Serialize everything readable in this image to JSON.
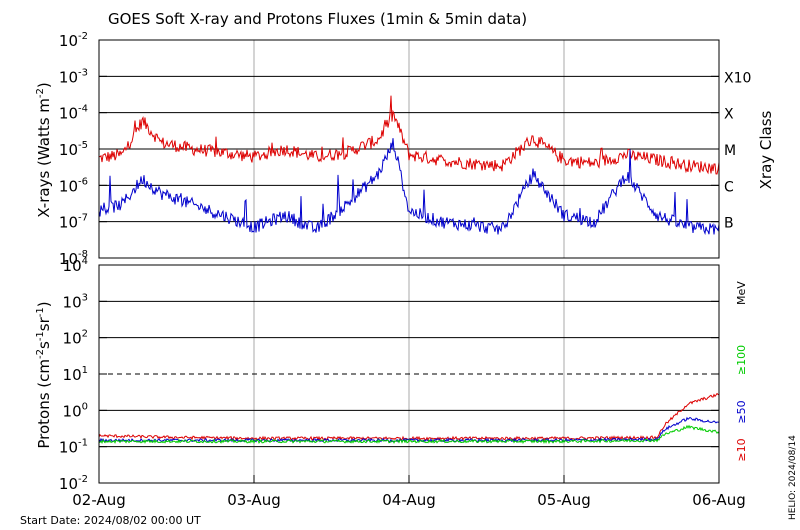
{
  "title": "GOES Soft X-ray and Protons Fluxes   (1min & 5min data)",
  "start_date": "Start Date: 2024/08/02 00:00 UT",
  "stamp": "HELIO: 2024/08/14",
  "colors": {
    "red": "#dd0000",
    "blue": "#0000cc",
    "green": "#00cc00",
    "grid": "#000000",
    "vgrid": "#aaaaaa"
  },
  "chart_data": [
    {
      "type": "line",
      "scale": "log",
      "ylabel_base": "X-rays (Watts m",
      "ylabel_exp": "-2",
      "ylabel_tail": ")",
      "ylim": [
        1e-08,
        0.01
      ],
      "y_ticks": [
        {
          "base": "10",
          "exp": "-2"
        },
        {
          "base": "10",
          "exp": "-3"
        },
        {
          "base": "10",
          "exp": "-4"
        },
        {
          "base": "10",
          "exp": "-5"
        },
        {
          "base": "10",
          "exp": "-6"
        },
        {
          "base": "10",
          "exp": "-7"
        },
        {
          "base": "10",
          "exp": "-8"
        }
      ],
      "right_title": "Xray Class",
      "classes": [
        "X10",
        "X",
        "M",
        "C",
        "B"
      ],
      "xlim_days": [
        "02-Aug",
        "06-Aug"
      ],
      "series": [
        {
          "color_key": "red",
          "points": [
            [
              0,
              5.5e-06
            ],
            [
              0.15,
              7e-06
            ],
            [
              0.28,
              6e-05
            ],
            [
              0.4,
              1.5e-05
            ],
            [
              0.6,
              1e-05
            ],
            [
              0.8,
              8e-06
            ],
            [
              1.0,
              6e-06
            ],
            [
              1.2,
              1e-05
            ],
            [
              1.4,
              6e-06
            ],
            [
              1.6,
              8e-06
            ],
            [
              1.8,
              1.8e-05
            ],
            [
              1.9,
              9e-05
            ],
            [
              2.0,
              7e-06
            ],
            [
              2.2,
              5e-06
            ],
            [
              2.4,
              4e-06
            ],
            [
              2.6,
              3.5e-06
            ],
            [
              2.8,
              2e-05
            ],
            [
              3.0,
              5e-06
            ],
            [
              3.2,
              4e-06
            ],
            [
              3.4,
              7e-06
            ],
            [
              3.6,
              5e-06
            ],
            [
              3.8,
              3.5e-06
            ],
            [
              4.0,
              3e-06
            ]
          ]
        },
        {
          "color_key": "blue",
          "points": [
            [
              0,
              2e-07
            ],
            [
              0.15,
              3e-07
            ],
            [
              0.28,
              1.5e-06
            ],
            [
              0.4,
              6e-07
            ],
            [
              0.6,
              3e-07
            ],
            [
              0.8,
              1.5e-07
            ],
            [
              1.0,
              7e-08
            ],
            [
              1.2,
              1.5e-07
            ],
            [
              1.4,
              6e-08
            ],
            [
              1.6,
              3e-07
            ],
            [
              1.8,
              2e-06
            ],
            [
              1.9,
              1.5e-05
            ],
            [
              2.0,
              2e-07
            ],
            [
              2.2,
              1e-07
            ],
            [
              2.4,
              8e-08
            ],
            [
              2.6,
              6e-08
            ],
            [
              2.8,
              2e-06
            ],
            [
              3.0,
              1.5e-07
            ],
            [
              3.2,
              1e-07
            ],
            [
              3.4,
              2e-06
            ],
            [
              3.6,
              1.5e-07
            ],
            [
              3.8,
              7e-08
            ],
            [
              4.0,
              6e-08
            ]
          ]
        }
      ]
    },
    {
      "type": "line",
      "scale": "log",
      "ylabel_base": "Protons (cm",
      "ylabel_mid1": "-2",
      "ylabel_mid2": "s",
      "ylabel_mid3": "-1",
      "ylabel_mid4": "sr",
      "ylabel_mid5": "-1",
      "ylabel_tail": ")",
      "ylim": [
        0.01,
        10000
      ],
      "y_ticks": [
        {
          "base": "10",
          "exp": "4"
        },
        {
          "base": "10",
          "exp": "3"
        },
        {
          "base": "10",
          "exp": "2"
        },
        {
          "base": "10",
          "exp": "1"
        },
        {
          "base": "10",
          "exp": "0"
        },
        {
          "base": "10",
          "exp": "-1"
        },
        {
          "base": "10",
          "exp": "-2"
        }
      ],
      "threshold": 10,
      "unit": "MeV",
      "legend": [
        {
          "label": "≥100",
          "color_key": "green"
        },
        {
          "label": "≥50",
          "color_key": "blue"
        },
        {
          "label": "≥10",
          "color_key": "red"
        }
      ],
      "series": [
        {
          "label": "≥10",
          "color_key": "red",
          "points": [
            [
              0,
              0.2
            ],
            [
              0.5,
              0.18
            ],
            [
              1,
              0.17
            ],
            [
              2,
              0.17
            ],
            [
              3,
              0.17
            ],
            [
              3.6,
              0.18
            ],
            [
              3.65,
              0.4
            ],
            [
              3.8,
              1.5
            ],
            [
              4.0,
              2.8
            ]
          ]
        },
        {
          "label": "≥50",
          "color_key": "blue",
          "points": [
            [
              0,
              0.15
            ],
            [
              0.5,
              0.15
            ],
            [
              1,
              0.15
            ],
            [
              2,
              0.15
            ],
            [
              3,
              0.15
            ],
            [
              3.6,
              0.16
            ],
            [
              3.65,
              0.3
            ],
            [
              3.8,
              0.6
            ],
            [
              4.0,
              0.45
            ]
          ]
        },
        {
          "label": "≥100",
          "color_key": "green",
          "points": [
            [
              0,
              0.14
            ],
            [
              0.5,
              0.14
            ],
            [
              1,
              0.14
            ],
            [
              2,
              0.14
            ],
            [
              3,
              0.14
            ],
            [
              3.6,
              0.15
            ],
            [
              3.65,
              0.22
            ],
            [
              3.8,
              0.35
            ],
            [
              4.0,
              0.25
            ]
          ]
        }
      ],
      "x_ticks": [
        "02-Aug",
        "03-Aug",
        "04-Aug",
        "05-Aug",
        "06-Aug"
      ]
    }
  ]
}
